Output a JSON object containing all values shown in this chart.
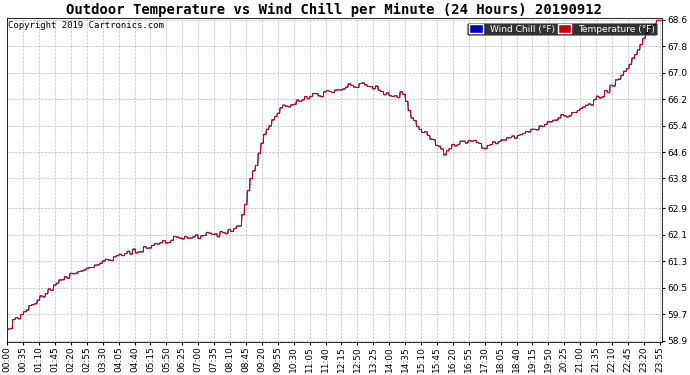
{
  "title": "Outdoor Temperature vs Wind Chill per Minute (24 Hours) 20190912",
  "copyright": "Copyright 2019 Cartronics.com",
  "ylabel_right_ticks": [
    58.9,
    59.7,
    60.5,
    61.3,
    62.1,
    62.9,
    63.8,
    64.6,
    65.4,
    66.2,
    67.0,
    67.8,
    68.6
  ],
  "ymin": 58.9,
  "ymax": 68.6,
  "legend_items": [
    {
      "label": "Wind Chill (°F)",
      "color": "#0000bb"
    },
    {
      "label": "Temperature (°F)",
      "color": "#cc0000"
    }
  ],
  "line_color": "#cc0000",
  "wind_chill_color": "#0000bb",
  "background_color": "#ffffff",
  "grid_color": "#bbbbbb",
  "title_fontsize": 10,
  "copyright_fontsize": 6.5,
  "tick_fontsize": 6.5,
  "tick_interval_min": 35
}
